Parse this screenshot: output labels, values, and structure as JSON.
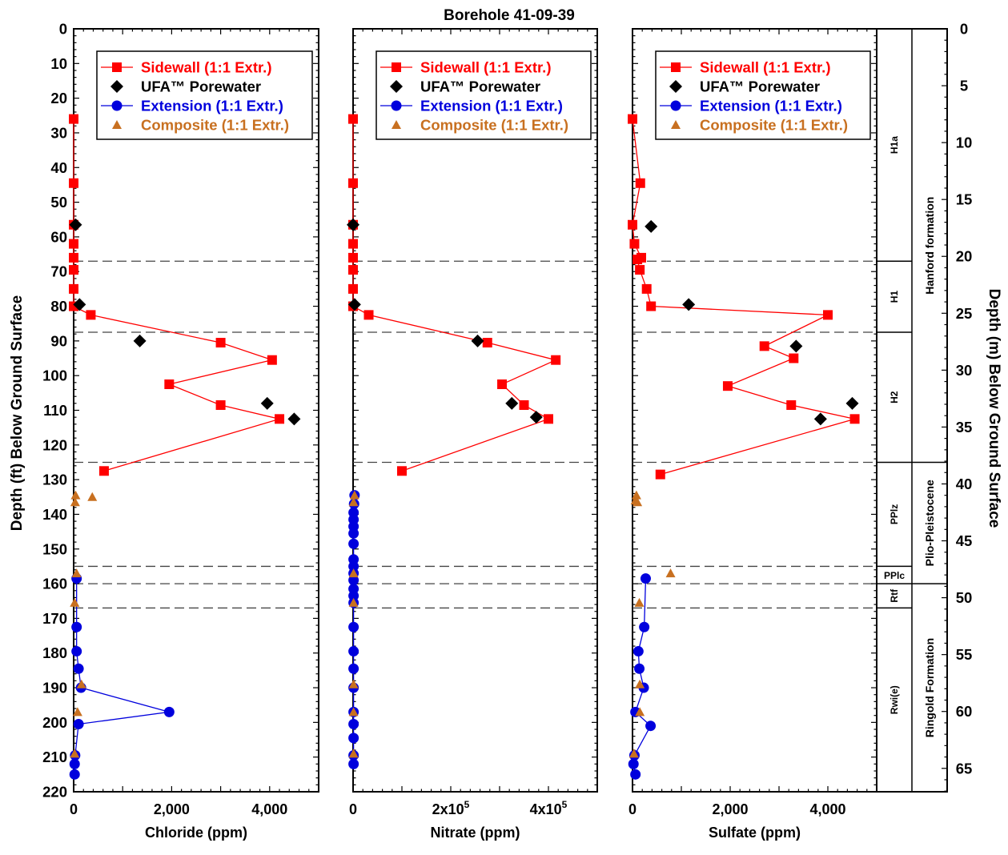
{
  "title": "Borehole 41-09-39",
  "y_left_label": "Depth (ft) Below Ground Surface",
  "y_right_label": "Depth (m) Below Ground Surface",
  "y_left_ticks": [
    "0",
    "10",
    "20",
    "30",
    "40",
    "50",
    "60",
    "70",
    "80",
    "90",
    "100",
    "110",
    "120",
    "130",
    "140",
    "150",
    "160",
    "170",
    "180",
    "190",
    "200",
    "210",
    "220"
  ],
  "y_right_ticks": [
    "0",
    "5",
    "10",
    "15",
    "20",
    "25",
    "30",
    "35",
    "40",
    "45",
    "50",
    "55",
    "60",
    "65"
  ],
  "legend": [
    {
      "label": "Sidewall (1:1 Extr.)",
      "color": "#ff0000",
      "marker": "square-line"
    },
    {
      "label": "UFA™ Porewater",
      "color": "#000000",
      "marker": "diamond"
    },
    {
      "label": "Extension (1:1 Extr.)",
      "color": "#0000cc",
      "marker": "circle-line"
    },
    {
      "label": "Composite (1:1 Extr.)",
      "color": "#cc6600",
      "marker": "triangle"
    }
  ],
  "colors": {
    "sidewall": "#ff0000",
    "ufa": "#000000",
    "extension": "#0000dd",
    "composite": "#c87020",
    "grid": "#444444"
  },
  "strata": {
    "units": [
      {
        "label": "H1a",
        "top": 0,
        "bottom": 67,
        "rotated": true
      },
      {
        "label": "H1",
        "top": 67,
        "bottom": 87.5,
        "rotated": true
      },
      {
        "label": "H2",
        "top": 87.5,
        "bottom": 125,
        "rotated": true
      },
      {
        "label": "PPlz",
        "top": 125,
        "bottom": 155,
        "rotated": true
      },
      {
        "label": "PPlc",
        "top": 155,
        "bottom": 160,
        "rotated": false
      },
      {
        "label": "Rtf",
        "top": 160,
        "bottom": 167,
        "rotated": true
      },
      {
        "label": "Rwi(e)",
        "top": 167,
        "bottom": 220,
        "rotated": true
      }
    ],
    "formations": [
      {
        "label": "Hanford formation",
        "top": 0,
        "bottom": 125
      },
      {
        "label": "Plio-Pleistocene",
        "top": 125,
        "bottom": 160
      },
      {
        "label": "Ringold Formation",
        "top": 160,
        "bottom": 220
      }
    ],
    "boundaries": [
      67,
      87.5,
      125,
      155,
      160,
      167
    ]
  },
  "chart_data": [
    {
      "type": "scatter",
      "xlabel": "Chloride (ppm)",
      "ylabel": "Depth (ft) Below Ground Surface",
      "xlim": [
        0,
        5000
      ],
      "ylim": [
        220,
        0
      ],
      "x_ticks": [
        {
          "value": 0,
          "label": "0"
        },
        {
          "value": 2000,
          "label": "2,000"
        },
        {
          "value": 4000,
          "label": "4,000"
        }
      ],
      "series": [
        {
          "name": "Sidewall (1:1 Extr.)",
          "style": "square-line",
          "points": [
            [
              0,
              26
            ],
            [
              0,
              44.5
            ],
            [
              0,
              56.5
            ],
            [
              0,
              62
            ],
            [
              0,
              66
            ],
            [
              0,
              69.5
            ],
            [
              0,
              75
            ],
            [
              0,
              80
            ],
            [
              350,
              82.5
            ],
            [
              3000,
              90.5
            ],
            [
              4050,
              95.5
            ],
            [
              1950,
              102.5
            ],
            [
              3000,
              108.5
            ],
            [
              4200,
              112.5
            ],
            [
              620,
              127.5
            ]
          ]
        },
        {
          "name": "UFA™ Porewater",
          "style": "diamond",
          "points": [
            [
              40,
              56.5
            ],
            [
              120,
              79.5
            ],
            [
              1350,
              90
            ],
            [
              3950,
              108
            ],
            [
              4500,
              112.5
            ]
          ]
        },
        {
          "name": "Extension (1:1 Extr.)",
          "style": "circle-line",
          "points": [
            [
              60,
              158.5
            ],
            [
              60,
              172.5
            ],
            [
              60,
              179.5
            ],
            [
              100,
              184.5
            ],
            [
              150,
              190
            ],
            [
              1950,
              197
            ],
            [
              100,
              200.5
            ],
            [
              30,
              209.5
            ],
            [
              20,
              212
            ],
            [
              20,
              215
            ]
          ]
        },
        {
          "name": "Composite (1:1 Extr.)",
          "style": "triangle",
          "points": [
            [
              40,
              134.5
            ],
            [
              30,
              136.5
            ],
            [
              380,
              135
            ],
            [
              60,
              157
            ],
            [
              20,
              165.5
            ],
            [
              160,
              189
            ],
            [
              80,
              197
            ],
            [
              20,
              209
            ]
          ]
        }
      ]
    },
    {
      "type": "scatter",
      "xlabel": "Nitrate (ppm)",
      "ylabel": "Depth (ft) Below Ground Surface",
      "xlim": [
        0,
        500000
      ],
      "ylim": [
        220,
        0
      ],
      "x_ticks": [
        {
          "value": 0,
          "label": "0"
        },
        {
          "value": 200000,
          "label": "2x10",
          "exp": "5"
        },
        {
          "value": 400000,
          "label": "4x10",
          "exp": "5"
        }
      ],
      "series": [
        {
          "name": "Sidewall (1:1 Extr.)",
          "style": "square-line",
          "points": [
            [
              0,
              26
            ],
            [
              0,
              44.5
            ],
            [
              0,
              56.5
            ],
            [
              0,
              62
            ],
            [
              0,
              66
            ],
            [
              0,
              69.5
            ],
            [
              0,
              75
            ],
            [
              0,
              80
            ],
            [
              32000,
              82.5
            ],
            [
              275000,
              90.5
            ],
            [
              415000,
              95.5
            ],
            [
              305000,
              102.5
            ],
            [
              350000,
              108.5
            ],
            [
              400000,
              112.5
            ],
            [
              100000,
              127.5
            ]
          ]
        },
        {
          "name": "UFA™ Porewater",
          "style": "diamond",
          "points": [
            [
              0,
              56.5
            ],
            [
              3000,
              79.5
            ],
            [
              255000,
              90
            ],
            [
              325000,
              108
            ],
            [
              375000,
              112
            ]
          ]
        },
        {
          "name": "Extension (1:1 Extr.)",
          "style": "circle-line",
          "points": [
            [
              3000,
              134.5
            ],
            [
              2000,
              137
            ],
            [
              1000,
              139.5
            ],
            [
              1000,
              141.5
            ],
            [
              1000,
              143.5
            ],
            [
              1000,
              145.5
            ],
            [
              1000,
              148.5
            ],
            [
              1000,
              153
            ],
            [
              1000,
              155
            ],
            [
              1000,
              157
            ],
            [
              1000,
              159
            ],
            [
              1000,
              161.5
            ],
            [
              1000,
              163.5
            ],
            [
              1000,
              165.5
            ],
            [
              1000,
              172.5
            ],
            [
              1000,
              179.5
            ],
            [
              1000,
              184.5
            ],
            [
              1000,
              190
            ],
            [
              1000,
              197
            ],
            [
              1000,
              200.5
            ],
            [
              1000,
              204.5
            ],
            [
              1000,
              209.5
            ],
            [
              1000,
              212
            ]
          ]
        },
        {
          "name": "Composite (1:1 Extr.)",
          "style": "triangle",
          "points": [
            [
              3000,
              134.5
            ],
            [
              1000,
              136.5
            ],
            [
              1000,
              157
            ],
            [
              1000,
              165.5
            ],
            [
              1000,
              189
            ],
            [
              1000,
              197
            ],
            [
              1000,
              209
            ]
          ]
        }
      ]
    },
    {
      "type": "scatter",
      "xlabel": "Sulfate (ppm)",
      "ylabel": "Depth (ft) Below Ground Surface",
      "xlim": [
        0,
        5000
      ],
      "ylim": [
        220,
        0
      ],
      "x_ticks": [
        {
          "value": 0,
          "label": "0"
        },
        {
          "value": 2000,
          "label": "2,000"
        },
        {
          "value": 4000,
          "label": "4,000"
        }
      ],
      "series": [
        {
          "name": "Sidewall (1:1 Extr.)",
          "style": "square-line",
          "points": [
            [
              0,
              26
            ],
            [
              160,
              44.5
            ],
            [
              0,
              56.5
            ],
            [
              40,
              62
            ],
            [
              180,
              66
            ],
            [
              100,
              66.5
            ],
            [
              150,
              69.5
            ],
            [
              290,
              75
            ],
            [
              380,
              80
            ],
            [
              4000,
              82.5
            ],
            [
              2700,
              91.5
            ],
            [
              3300,
              95
            ],
            [
              1950,
              103
            ],
            [
              3250,
              108.5
            ],
            [
              4550,
              112.5
            ],
            [
              570,
              128.5
            ]
          ]
        },
        {
          "name": "UFA™ Porewater",
          "style": "diamond",
          "points": [
            [
              380,
              57
            ],
            [
              1150,
              79.5
            ],
            [
              3350,
              91.5
            ],
            [
              4500,
              108
            ],
            [
              3850,
              112.5
            ]
          ]
        },
        {
          "name": "Extension (1:1 Extr.)",
          "style": "circle-line",
          "points": [
            [
              270,
              158.5
            ],
            [
              240,
              172.5
            ],
            [
              120,
              179.5
            ],
            [
              140,
              184.5
            ],
            [
              230,
              190
            ],
            [
              60,
              197
            ],
            [
              370,
              201
            ],
            [
              40,
              209.5
            ],
            [
              20,
              212
            ],
            [
              60,
              215
            ]
          ]
        },
        {
          "name": "Composite (1:1 Extr.)",
          "style": "triangle",
          "points": [
            [
              80,
              134.5
            ],
            [
              100,
              136.5
            ],
            [
              60,
              136
            ],
            [
              780,
              157
            ],
            [
              140,
              165.5
            ],
            [
              150,
              189
            ],
            [
              150,
              197
            ],
            [
              30,
              209
            ]
          ]
        }
      ]
    }
  ]
}
